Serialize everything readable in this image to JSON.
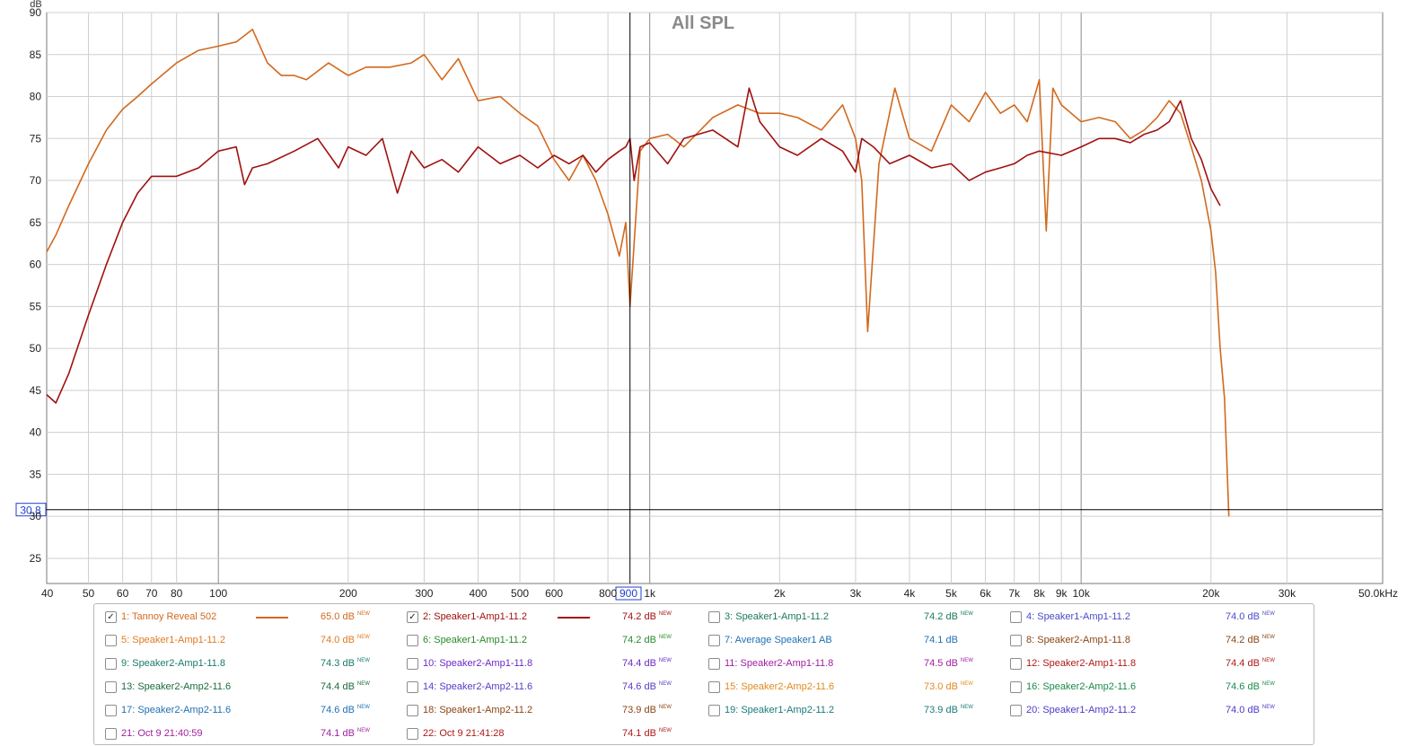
{
  "chart_data": {
    "type": "line",
    "title": "All SPL",
    "ylabel": "dB",
    "xlabel": "",
    "x_scale": "log",
    "xlim": [
      40,
      50000
    ],
    "ylim": [
      22,
      90
    ],
    "x_ticks": [
      40,
      50,
      60,
      70,
      80,
      100,
      200,
      300,
      400,
      500,
      600,
      800,
      1000,
      2000,
      3000,
      4000,
      5000,
      6000,
      7000,
      8000,
      9000,
      10000,
      20000,
      30000,
      50000
    ],
    "x_tick_labels": [
      "40",
      "50",
      "60",
      "70",
      "80",
      "100",
      "200",
      "300",
      "400",
      "500",
      "600",
      "800",
      "1k",
      "2k",
      "3k",
      "4k",
      "5k",
      "6k",
      "7k",
      "8k",
      "9k",
      "10k",
      "20k",
      "30k",
      "50.0kHz"
    ],
    "y_ticks": [
      25,
      30,
      35,
      40,
      45,
      50,
      55,
      60,
      65,
      70,
      75,
      80,
      85,
      90
    ],
    "grid": true,
    "cursor": {
      "x_label": "900",
      "y_label": "30.8"
    },
    "series": [
      {
        "name": "1: Tannoy Reveal 502",
        "color": "#d2691e",
        "x": [
          40,
          42,
          45,
          50,
          55,
          60,
          65,
          70,
          80,
          90,
          100,
          110,
          120,
          130,
          140,
          150,
          160,
          180,
          200,
          220,
          250,
          280,
          300,
          330,
          360,
          400,
          450,
          500,
          550,
          600,
          650,
          700,
          750,
          800,
          850,
          880,
          900,
          950,
          1000,
          1100,
          1200,
          1400,
          1600,
          1800,
          2000,
          2200,
          2500,
          2800,
          3000,
          3100,
          3200,
          3400,
          3700,
          4000,
          4500,
          5000,
          5500,
          6000,
          6500,
          7000,
          7500,
          8000,
          8300,
          8600,
          9000,
          10000,
          11000,
          12000,
          13000,
          14000,
          15000,
          16000,
          17000,
          18000,
          19000,
          20000,
          20500,
          21000,
          21500,
          22000
        ],
        "y": [
          61.5,
          63.5,
          67,
          72,
          76,
          78.5,
          80,
          81.5,
          84,
          85.5,
          86,
          86.5,
          88,
          84,
          82.5,
          82.5,
          82,
          84,
          82.5,
          83.5,
          83.5,
          84,
          85,
          82,
          84.5,
          79.5,
          80,
          78,
          76.5,
          72.5,
          70,
          73,
          70,
          66,
          61,
          65,
          55,
          73.5,
          75,
          75.5,
          74,
          77.5,
          79,
          78,
          78,
          77.5,
          76,
          79,
          75,
          70,
          52,
          72,
          81,
          75,
          73.5,
          79,
          77,
          80.5,
          78,
          79,
          77,
          82,
          64,
          81,
          79,
          77,
          77.5,
          77,
          75,
          76,
          77.5,
          79.5,
          78,
          74,
          70,
          64,
          59,
          50,
          44,
          30
        ]
      },
      {
        "name": "2: Speaker1-Amp1-11.2",
        "color": "#a01010",
        "x": [
          40,
          42,
          45,
          50,
          55,
          60,
          65,
          70,
          80,
          90,
          100,
          110,
          115,
          120,
          130,
          150,
          170,
          190,
          200,
          220,
          240,
          260,
          280,
          300,
          330,
          360,
          400,
          450,
          500,
          550,
          600,
          650,
          700,
          750,
          800,
          850,
          880,
          900,
          920,
          950,
          1000,
          1100,
          1200,
          1400,
          1600,
          1700,
          1800,
          2000,
          2200,
          2500,
          2800,
          3000,
          3100,
          3300,
          3600,
          4000,
          4500,
          5000,
          5500,
          6000,
          6500,
          7000,
          7500,
          8000,
          9000,
          10000,
          11000,
          12000,
          13000,
          14000,
          15000,
          16000,
          17000,
          18000,
          19000,
          20000,
          21000
        ],
        "y": [
          44.5,
          43.5,
          47,
          54,
          60,
          65,
          68.5,
          70.5,
          70.5,
          71.5,
          73.5,
          74,
          69.5,
          71.5,
          72,
          73.5,
          75,
          71.5,
          74,
          73,
          75,
          68.5,
          73.5,
          71.5,
          72.5,
          71,
          74,
          72,
          73,
          71.5,
          73,
          72,
          73,
          71,
          72.5,
          73.5,
          74,
          75,
          70,
          74,
          74.5,
          72,
          75,
          76,
          74,
          81,
          77,
          74,
          73,
          75,
          73.5,
          71,
          75,
          74,
          72,
          73,
          71.5,
          72,
          70,
          71,
          71.5,
          72,
          73,
          73.5,
          73,
          74,
          75,
          75,
          74.5,
          75.5,
          76,
          77,
          79.5,
          75,
          72.5,
          69,
          67
        ]
      }
    ]
  },
  "legend": {
    "items": [
      {
        "label": "1: Tannoy Reveal 502",
        "value": "65.0 dB",
        "new": "NEW",
        "checked": "✓",
        "color": "#d2691e"
      },
      {
        "label": "2: Speaker1-Amp1-11.2",
        "value": "74.2 dB",
        "new": "NEW",
        "checked": "✓",
        "color": "#a01010"
      },
      {
        "label": "3: Speaker1-Amp1-11.2",
        "value": "74.2 dB",
        "new": "NEW",
        "checked": "",
        "color": "#1a7a5a"
      },
      {
        "label": "4: Speaker1-Amp1-11.2",
        "value": "74.0 dB",
        "new": "NEW",
        "checked": "",
        "color": "#4a4ac8"
      },
      {
        "label": "5: Speaker1-Amp1-11.2",
        "value": "74.0 dB",
        "new": "NEW",
        "checked": "",
        "color": "#e07a20"
      },
      {
        "label": "6: Speaker1-Amp1-11.2",
        "value": "74.2 dB",
        "new": "NEW",
        "checked": "",
        "color": "#2a8a2a"
      },
      {
        "label": "7: Average Speaker1 AB",
        "value": "74.1 dB",
        "new": "",
        "checked": "",
        "color": "#1f6fb4"
      },
      {
        "label": "8: Speaker2-Amp1-11.8",
        "value": "74.2 dB",
        "new": "NEW",
        "checked": "",
        "color": "#8b4513"
      },
      {
        "label": "9: Speaker2-Amp1-11.8",
        "value": "74.3 dB",
        "new": "NEW",
        "checked": "",
        "color": "#1a7a6a"
      },
      {
        "label": "10: Speaker2-Amp1-11.8",
        "value": "74.4 dB",
        "new": "NEW",
        "checked": "",
        "color": "#6a2ac8"
      },
      {
        "label": "11: Speaker2-Amp1-11.8",
        "value": "74.5 dB",
        "new": "NEW",
        "checked": "",
        "color": "#a020a0"
      },
      {
        "label": "12: Speaker2-Amp1-11.8",
        "value": "74.4 dB",
        "new": "NEW",
        "checked": "",
        "color": "#b01818"
      },
      {
        "label": "13: Speaker2-Amp2-11.6",
        "value": "74.4 dB",
        "new": "NEW",
        "checked": "",
        "color": "#1a6a3a"
      },
      {
        "label": "14: Speaker2-Amp2-11.6",
        "value": "74.6 dB",
        "new": "NEW",
        "checked": "",
        "color": "#5a3ac8"
      },
      {
        "label": "15: Speaker2-Amp2-11.6",
        "value": "73.0 dB",
        "new": "NEW",
        "checked": "",
        "color": "#e08a20"
      },
      {
        "label": "16: Speaker2-Amp2-11.6",
        "value": "74.6 dB",
        "new": "NEW",
        "checked": "",
        "color": "#1a8a4a"
      },
      {
        "label": "17: Speaker2-Amp2-11.6",
        "value": "74.6 dB",
        "new": "NEW",
        "checked": "",
        "color": "#1f6fb4"
      },
      {
        "label": "18: Speaker1-Amp2-11.2",
        "value": "73.9 dB",
        "new": "NEW",
        "checked": "",
        "color": "#8b4513"
      },
      {
        "label": "19: Speaker1-Amp2-11.2",
        "value": "73.9 dB",
        "new": "NEW",
        "checked": "",
        "color": "#1a7a7a"
      },
      {
        "label": "20: Speaker1-Amp2-11.2",
        "value": "74.0 dB",
        "new": "NEW",
        "checked": "",
        "color": "#4a3ac8"
      },
      {
        "label": "21: Oct 9 21:40:59",
        "value": "74.1 dB",
        "new": "NEW",
        "checked": "",
        "color": "#a020a0"
      },
      {
        "label": "22: Oct 9 21:41:28",
        "value": "74.1 dB",
        "new": "NEW",
        "checked": "",
        "color": "#b01818"
      }
    ]
  }
}
